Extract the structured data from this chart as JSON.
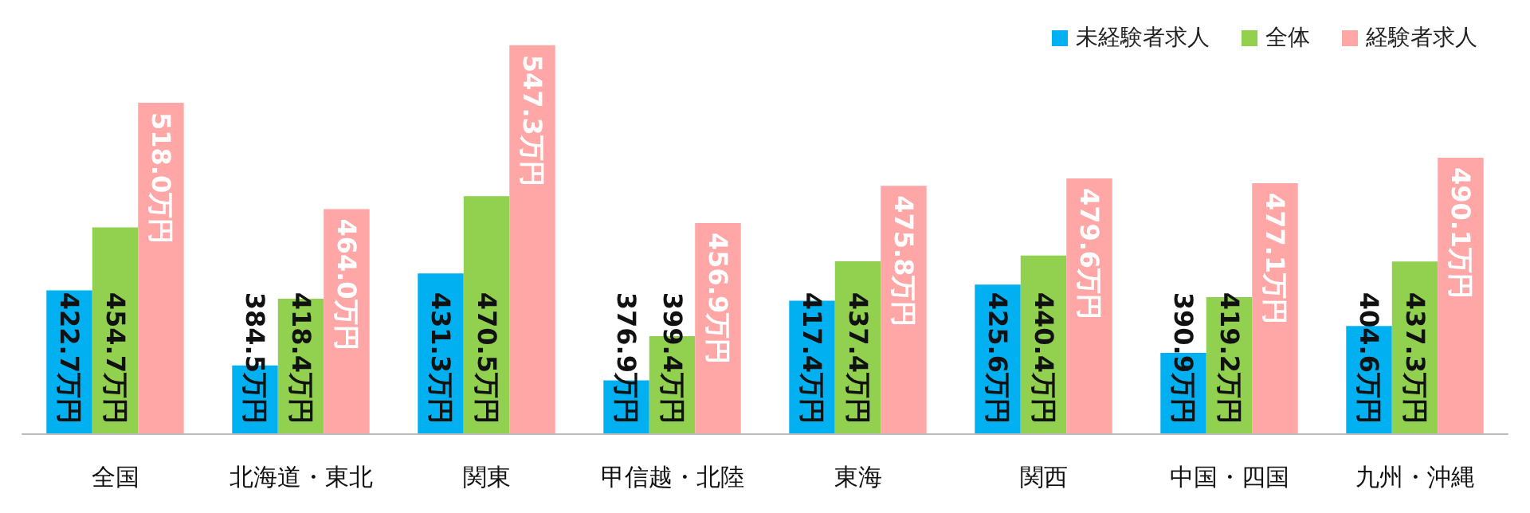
{
  "chart_data": {
    "type": "bar",
    "categories": [
      "全国",
      "北海道・東北",
      "関東",
      "甲信越・北陸",
      "東海",
      "関西",
      "中国・四国",
      "九州・沖縄"
    ],
    "series": [
      {
        "name": "未経験者求人",
        "color": "#00b0f0",
        "values": [
          422.7,
          384.5,
          431.3,
          376.9,
          417.4,
          425.6,
          390.9,
          404.6
        ],
        "value_labels": [
          "422.7万円",
          "384.5万円",
          "431.3万円",
          "376.9万円",
          "417.4万円",
          "425.6万円",
          "390.9万円",
          "404.6万円"
        ]
      },
      {
        "name": "全体",
        "color": "#92d050",
        "values": [
          454.7,
          418.4,
          470.5,
          399.4,
          437.4,
          440.4,
          419.2,
          437.3
        ],
        "value_labels": [
          "454.7万円",
          "418.4万円",
          "470.5万円",
          "399.4万円",
          "437.4万円",
          "440.4万円",
          "419.2万円",
          "437.3万円"
        ]
      },
      {
        "name": "経験者求人",
        "color": "#ffa7a7",
        "values": [
          518.0,
          464.0,
          547.3,
          456.9,
          475.8,
          479.6,
          477.1,
          490.1
        ],
        "value_labels": [
          "518.0万円",
          "464.0万円",
          "547.3万円",
          "456.9万円",
          "475.8万円",
          "479.6万円",
          "477.1万円",
          "490.1万円"
        ]
      }
    ],
    "ylim": [
      350,
      550
    ],
    "grid": false,
    "legend": "top right",
    "tick_labels": "x"
  }
}
